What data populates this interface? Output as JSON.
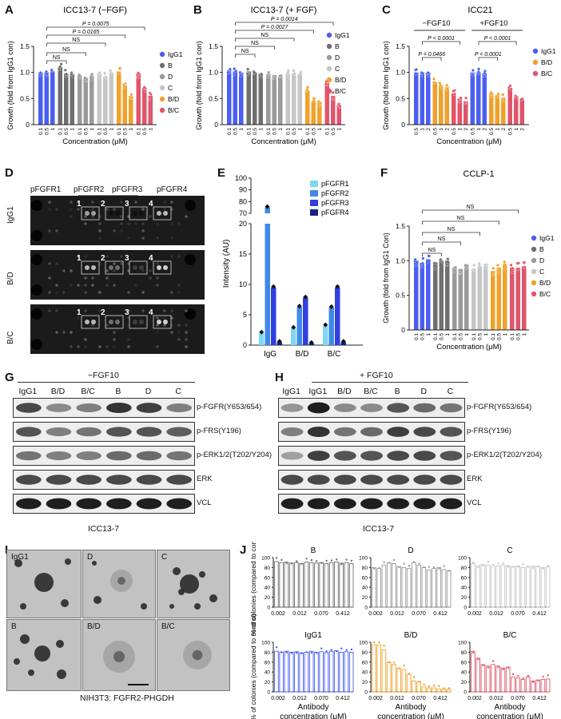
{
  "panels": {
    "A": {
      "letter": "A",
      "title": "ICC13-7  (−FGF)"
    },
    "B": {
      "letter": "B",
      "title": "ICC13-7 (+ FGF)"
    },
    "C": {
      "letter": "C",
      "title": "ICC21",
      "sub_left": "−FGF10",
      "sub_right": "+FGF10"
    },
    "D": {
      "letter": "D",
      "receptor_labels": [
        "pFGFR1",
        "pFGFR2",
        "pFGFR3",
        "pFGFR4"
      ],
      "row_labels": [
        "IgG1",
        "B/D",
        "B/C"
      ],
      "spot_numbers": [
        "1",
        "2",
        "3",
        "4"
      ]
    },
    "E": {
      "letter": "E"
    },
    "F": {
      "letter": "F",
      "title": "CCLP-1"
    },
    "G": {
      "letter": "G",
      "condition": "−FGF10",
      "cell_line": "ICC13-7",
      "lanes": [
        "IgG1",
        "B/D",
        "B/C",
        "B",
        "D",
        "C"
      ],
      "rows": [
        "p-FGFR(Y653/654)",
        "p-FRS(Y196)",
        "p-ERK1/2(T202/Y204)",
        "ERK",
        "VCL"
      ]
    },
    "H": {
      "letter": "H",
      "condition": "+ FGF10",
      "cell_line": "ICC13-7",
      "lanes": [
        "IgG1",
        "IgG1",
        "B/D",
        "B/C",
        "B",
        "D",
        "C"
      ],
      "rows": [
        "p-FGFR(Y653/654)",
        "p-FRS(Y196)",
        "p-ERK1/2(T202/Y204)",
        "ERK",
        "VCL"
      ]
    },
    "I": {
      "letter": "I",
      "caption": "NIH3T3: FGFR2-PHGDH",
      "images": [
        "IgG1",
        "D",
        "C",
        "B",
        "B/D",
        "B/C"
      ]
    },
    "J": {
      "letter": "J",
      "xlabel_line1": "Antibody",
      "xlabel_line2": "concentration (μM)",
      "ylabel": "% of colonies (compared to control)"
    }
  },
  "chart_data": [
    {
      "id": "A",
      "type": "bar",
      "title": "ICC13-7  (−FGF)",
      "xlabel": "Concentration (μM)",
      "ylabel": "Growth (fold from IgG1 con)",
      "ylim": [
        0,
        1.5
      ],
      "yticks": [
        0,
        0.5,
        1.0,
        1.5
      ],
      "tick_labels": [
        "0.1",
        "0.5",
        "1"
      ],
      "groups": [
        {
          "name": "IgG1",
          "color": "#4a5ff0",
          "values": [
            1.0,
            1.0,
            1.02
          ]
        },
        {
          "name": "B",
          "color": "#6f6f6f",
          "values": [
            1.1,
            0.98,
            0.97
          ]
        },
        {
          "name": "D",
          "color": "#9a9a9a",
          "values": [
            0.95,
            0.9,
            0.93
          ]
        },
        {
          "name": "C",
          "color": "#c6c6c6",
          "values": [
            0.97,
            0.92,
            1.0
          ]
        },
        {
          "name": "B/D",
          "color": "#f0a12a",
          "values": [
            1.02,
            0.75,
            0.55
          ]
        },
        {
          "name": "B/C",
          "color": "#e0556a",
          "values": [
            0.98,
            0.7,
            0.55
          ]
        }
      ],
      "comparisons": [
        "NS",
        "NS",
        "NS",
        "P = 0.0165",
        "P = 0.0075"
      ]
    },
    {
      "id": "B",
      "type": "bar",
      "title": "ICC13-7 (+ FGF)",
      "xlabel": "Concentration (μM)",
      "ylabel": "Growth (fold from IgG1 con)",
      "ylim": [
        0,
        1.5
      ],
      "yticks": [
        0,
        0.5,
        1.0,
        1.5
      ],
      "tick_labels": [
        "0.1",
        "0.5",
        "1"
      ],
      "groups": [
        {
          "name": "IgG1",
          "color": "#4a5ff0",
          "values": [
            1.04,
            1.02,
            1.0
          ]
        },
        {
          "name": "B",
          "color": "#6f6f6f",
          "values": [
            1.02,
            1.0,
            0.98
          ]
        },
        {
          "name": "D",
          "color": "#9a9a9a",
          "values": [
            0.97,
            0.95,
            0.93
          ]
        },
        {
          "name": "C",
          "color": "#c6c6c6",
          "values": [
            0.98,
            0.98,
            0.97
          ]
        },
        {
          "name": "B/D",
          "color": "#f0a12a",
          "values": [
            0.65,
            0.45,
            0.42
          ]
        },
        {
          "name": "B/C",
          "color": "#e0556a",
          "values": [
            0.8,
            0.55,
            0.38
          ]
        }
      ],
      "comparisons": [
        "NS",
        "NS",
        "NS",
        "P = 0.0027",
        "P = 0.0014"
      ]
    },
    {
      "id": "C",
      "type": "bar",
      "title": "ICC21",
      "xlabel": "Concentration (μM)",
      "ylabel": "Growth (fold from IgG1 con)",
      "ylim": [
        0,
        1.5
      ],
      "yticks": [
        0,
        0.5,
        1.0,
        1.5
      ],
      "tick_labels": [
        "0.5",
        "1",
        "2"
      ],
      "groups": [
        {
          "name": "IgG1",
          "color": "#4a5ff0",
          "values": [
            1.0,
            1.0,
            1.0
          ]
        },
        {
          "name": "B/D",
          "color": "#f0a12a",
          "values": [
            0.82,
            0.75,
            0.72
          ]
        },
        {
          "name": "B/C",
          "color": "#e0556a",
          "values": [
            0.6,
            0.5,
            0.45
          ]
        },
        {
          "name": "IgG1",
          "color": "#4a5ff0",
          "values": [
            1.0,
            1.0,
            0.98
          ]
        },
        {
          "name": "B/D",
          "color": "#f0a12a",
          "values": [
            0.6,
            0.55,
            0.52
          ]
        },
        {
          "name": "B/C",
          "color": "#e0556a",
          "values": [
            0.7,
            0.55,
            0.48
          ]
        }
      ],
      "legend": [
        "IgG1",
        "B/D",
        "B/C"
      ],
      "comparisons": [
        "P = 0.0466",
        "P < 0.0001",
        "P < 0.0001",
        "P < 0.0001"
      ]
    },
    {
      "id": "E",
      "type": "bar",
      "ylabel": "Intensity (AU)",
      "yticks_lower": [
        0,
        5,
        10,
        15,
        20
      ],
      "yticks_upper": [
        70,
        80,
        90,
        100
      ],
      "categories": [
        "IgG",
        "B/D",
        "B/C"
      ],
      "series": [
        {
          "name": "pFGFR1",
          "color": "#7fd8f0",
          "values": [
            2.0,
            2.8,
            3.2
          ]
        },
        {
          "name": "pFGFR2",
          "color": "#3f8ae6",
          "values": [
            75.0,
            6.3,
            6.2
          ]
        },
        {
          "name": "pFGFR3",
          "color": "#2f3fe0",
          "values": [
            9.5,
            7.8,
            9.5
          ]
        },
        {
          "name": "pFGFR4",
          "color": "#1a1f8a",
          "values": [
            0.5,
            0.3,
            0.5
          ]
        }
      ]
    },
    {
      "id": "F",
      "type": "bar",
      "title": "CCLP-1",
      "xlabel": "Concentration (μM)",
      "ylabel": "Growth (fold from IgG1 Con)",
      "ylim": [
        0,
        1.5
      ],
      "yticks": [
        0,
        0.5,
        1.0,
        1.5
      ],
      "tick_labels": [
        "0.1",
        "0.5",
        "1"
      ],
      "groups": [
        {
          "name": "IgG1",
          "color": "#4a5ff0",
          "values": [
            1.0,
            0.97,
            1.02
          ]
        },
        {
          "name": "B",
          "color": "#6f6f6f",
          "values": [
            0.95,
            1.0,
            1.0
          ]
        },
        {
          "name": "D",
          "color": "#9a9a9a",
          "values": [
            0.9,
            0.88,
            0.95
          ]
        },
        {
          "name": "C",
          "color": "#c6c6c6",
          "values": [
            0.88,
            0.92,
            0.95
          ]
        },
        {
          "name": "B/D",
          "color": "#f0a12a",
          "values": [
            0.85,
            0.9,
            0.95
          ]
        },
        {
          "name": "B/C",
          "color": "#e0556a",
          "values": [
            0.9,
            0.9,
            0.92
          ]
        }
      ],
      "comparisons": [
        "NS",
        "NS",
        "NS",
        "NS",
        "NS"
      ]
    },
    {
      "id": "J",
      "type": "bar",
      "ylim": [
        0,
        100
      ],
      "yticks": [
        0,
        20,
        40,
        60,
        80,
        100
      ],
      "x_ticklabels": [
        "0.002",
        "0.012",
        "0.070",
        "0.412"
      ],
      "xlabel": "Antibody concentration (μM)",
      "ylabel": "% of colonies (compared to control)",
      "subplots": [
        {
          "title": "B",
          "color": "#6f6f6f",
          "values": [
            92,
            90,
            91,
            89,
            90,
            88,
            91,
            90,
            89,
            90,
            88,
            90,
            91,
            89,
            90,
            88
          ]
        },
        {
          "title": "D",
          "color": "#9a9a9a",
          "values": [
            80,
            78,
            85,
            90,
            88,
            82,
            80,
            78,
            90,
            85,
            80,
            75,
            78,
            80,
            76,
            74
          ]
        },
        {
          "title": "C",
          "color": "#c6c6c6",
          "values": [
            88,
            84,
            86,
            85,
            82,
            83,
            85,
            84,
            82,
            83,
            80,
            82,
            83,
            82,
            80,
            81
          ]
        },
        {
          "title": "IgG1",
          "color": "#4a5ff0",
          "values": [
            82,
            80,
            82,
            80,
            81,
            79,
            80,
            82,
            80,
            81,
            79,
            82,
            83,
            80,
            81,
            80
          ]
        },
        {
          "title": "B/D",
          "color": "#f0a12a",
          "values": [
            95,
            95,
            85,
            60,
            55,
            48,
            45,
            35,
            22,
            20,
            10,
            8,
            8,
            6,
            5,
            5
          ]
        },
        {
          "title": "B/C",
          "color": "#e0556a",
          "values": [
            82,
            68,
            55,
            52,
            55,
            52,
            48,
            50,
            30,
            28,
            25,
            30,
            22,
            24,
            25,
            26
          ]
        }
      ]
    }
  ]
}
